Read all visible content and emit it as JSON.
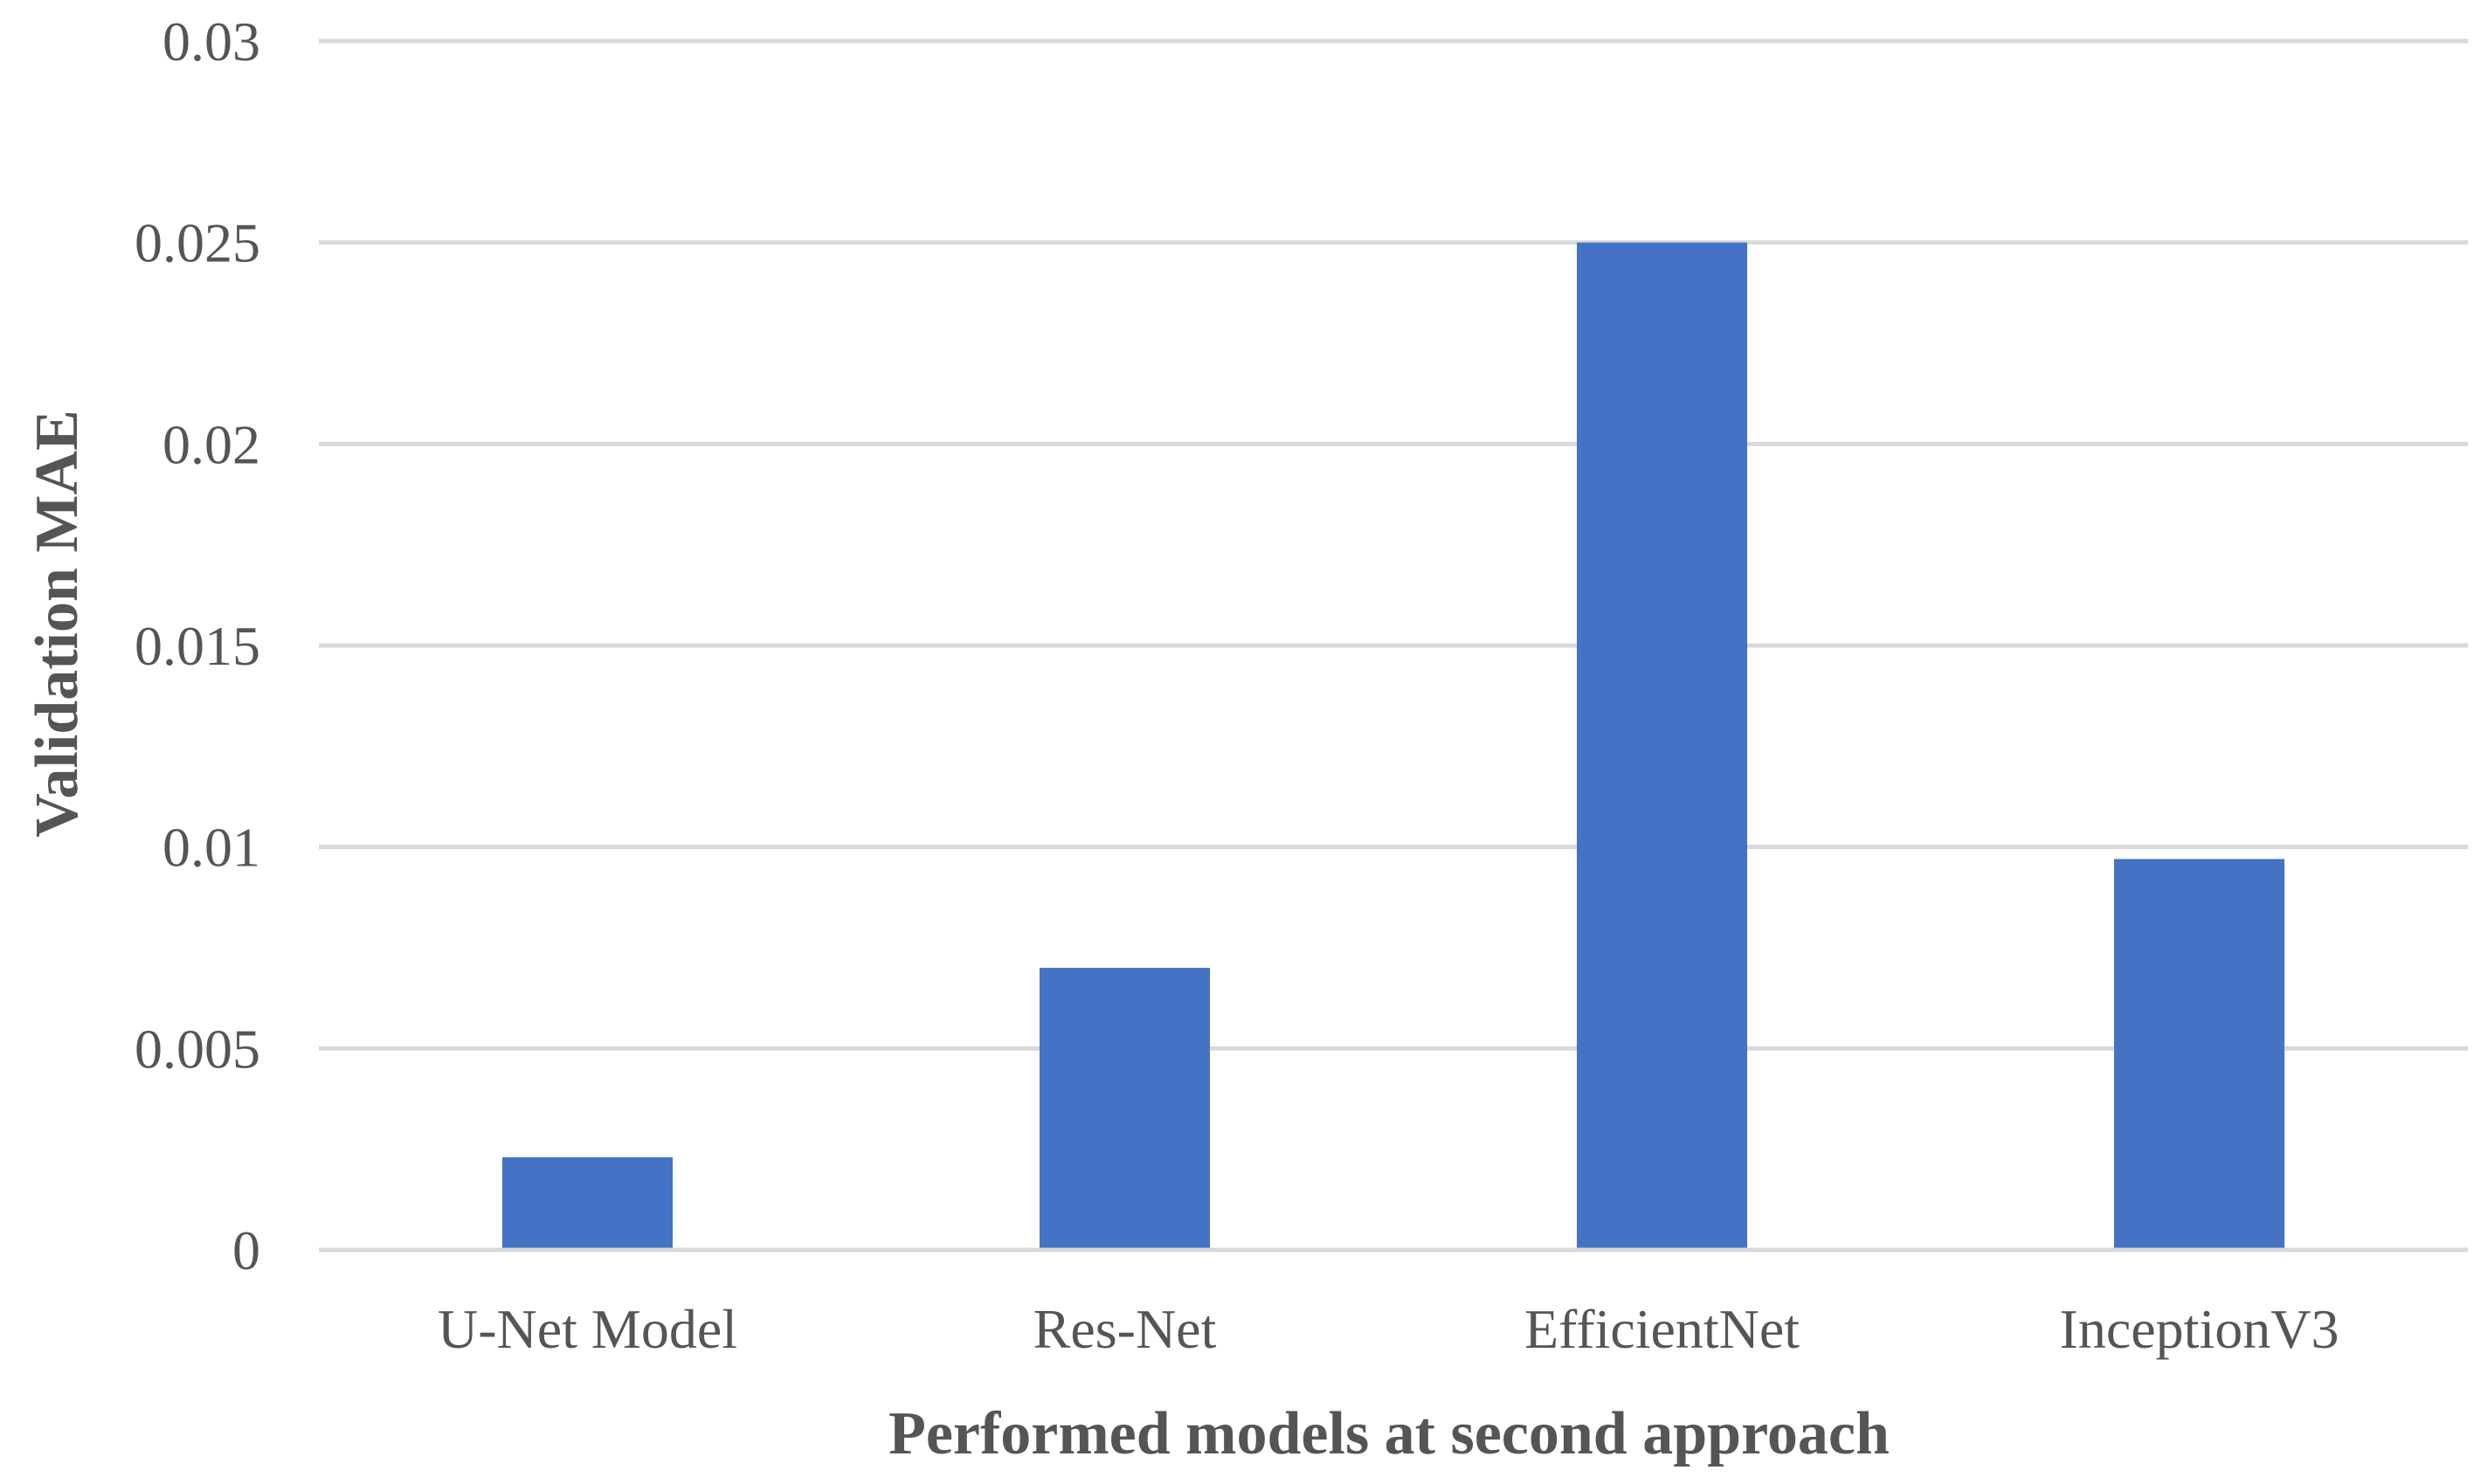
{
  "chart_data": {
    "type": "bar",
    "title": "",
    "xlabel": "Performed models at second approach",
    "ylabel": "Validation MAE",
    "categories": [
      "U-Net Model",
      "Res-Net",
      "EfficientNet",
      "InceptionV3"
    ],
    "values": [
      0.0023,
      0.007,
      0.025,
      0.0097
    ],
    "ylim": [
      0,
      0.03
    ],
    "yticks": [
      0,
      0.005,
      0.01,
      0.015,
      0.02,
      0.025,
      0.03
    ],
    "ytick_labels": [
      "0",
      "0.005",
      "0.01",
      "0.015",
      "0.02",
      "0.025",
      "0.03"
    ],
    "grid": true,
    "legend": "none",
    "bar_color": "#4472C4",
    "grid_color": "#D9D9D9"
  }
}
